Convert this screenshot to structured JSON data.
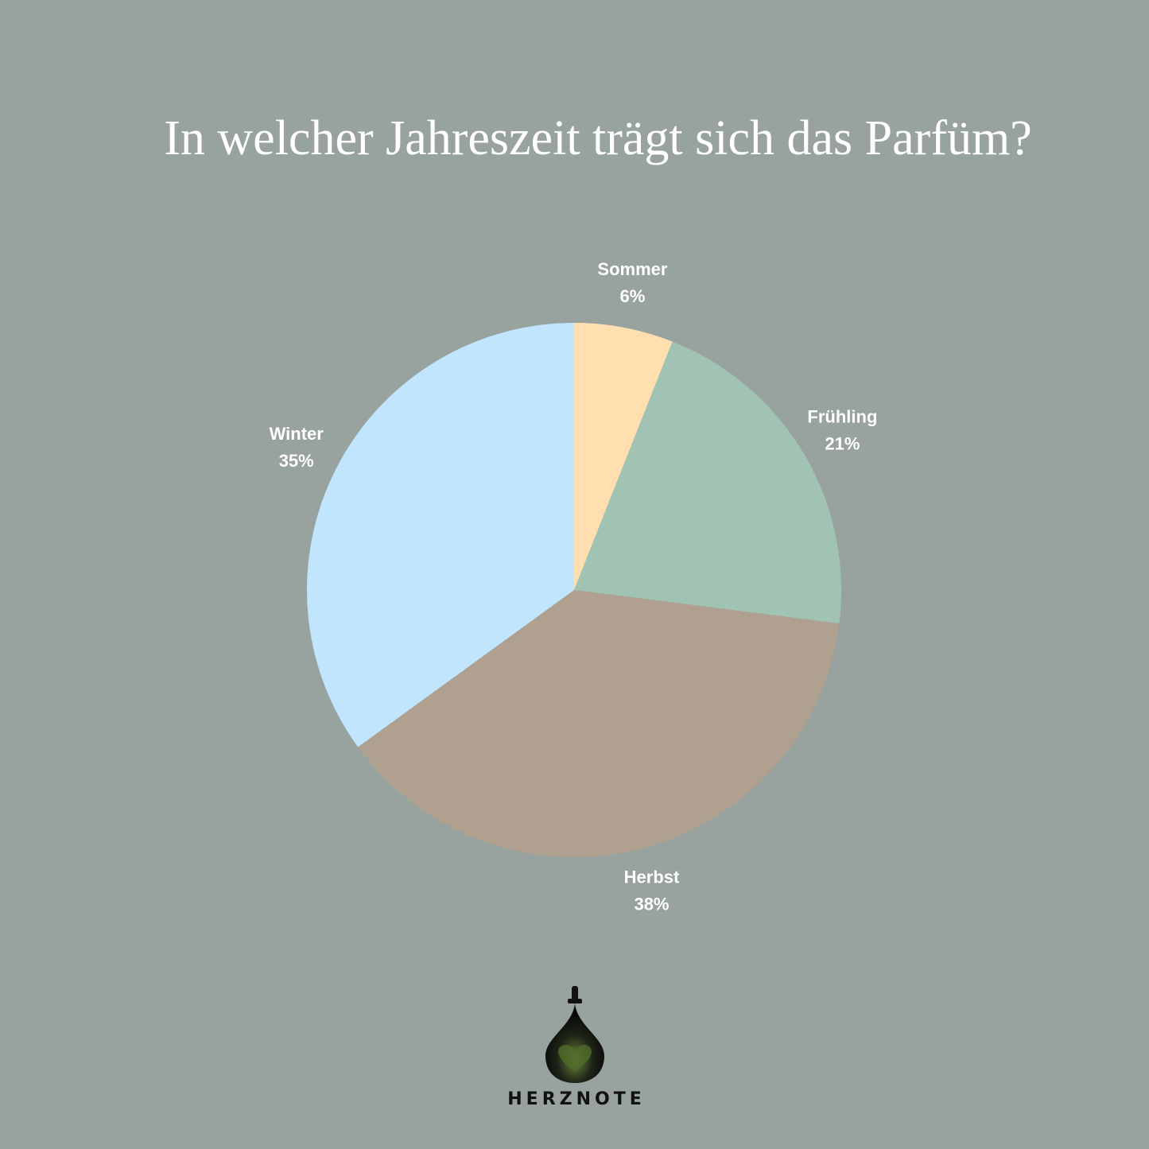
{
  "chart_data": {
    "type": "pie",
    "title": "In welcher Jahreszeit trägt sich das Parfüm?",
    "categories": [
      "Sommer",
      "Frühling",
      "Herbst",
      "Winter"
    ],
    "values": [
      6,
      21,
      38,
      35
    ],
    "value_labels": [
      "6%",
      "21%",
      "38%",
      "35%"
    ],
    "colors": [
      "#ffdfb0",
      "#a0c3b3",
      "#afa090",
      "#c0e5fc"
    ]
  },
  "logo": "HERZNOTE"
}
